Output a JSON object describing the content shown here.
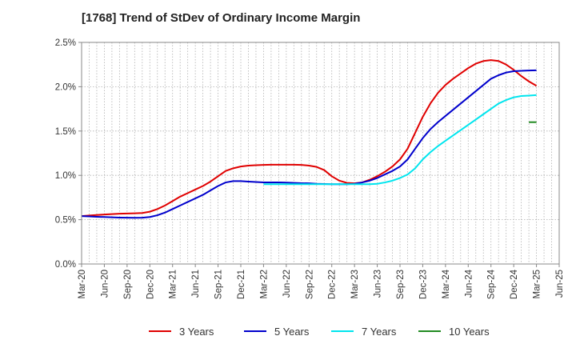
{
  "chart_data": {
    "type": "line",
    "title": "[1768]  Trend of StDev of Ordinary Income Margin",
    "xlabel": "",
    "ylabel": "",
    "x": [
      "Mar-20",
      "Apr-20",
      "May-20",
      "Jun-20",
      "Jul-20",
      "Aug-20",
      "Sep-20",
      "Oct-20",
      "Nov-20",
      "Dec-20",
      "Jan-21",
      "Feb-21",
      "Mar-21",
      "Apr-21",
      "May-21",
      "Jun-21",
      "Jul-21",
      "Aug-21",
      "Sep-21",
      "Oct-21",
      "Nov-21",
      "Dec-21",
      "Jan-22",
      "Feb-22",
      "Mar-22",
      "Apr-22",
      "May-22",
      "Jun-22",
      "Jul-22",
      "Aug-22",
      "Sep-22",
      "Oct-22",
      "Nov-22",
      "Dec-22",
      "Jan-23",
      "Feb-23",
      "Mar-23",
      "Apr-23",
      "May-23",
      "Jun-23",
      "Jul-23",
      "Aug-23",
      "Sep-23",
      "Oct-23",
      "Nov-23",
      "Dec-23",
      "Jan-24",
      "Feb-24",
      "Mar-24",
      "Apr-24",
      "May-24",
      "Jun-24",
      "Jul-24",
      "Aug-24",
      "Sep-24",
      "Oct-24",
      "Nov-24",
      "Dec-24",
      "Jan-25",
      "Feb-25",
      "Mar-25"
    ],
    "x_tick_labels": [
      "Mar-20",
      "Jun-20",
      "Sep-20",
      "Dec-20",
      "Mar-21",
      "Jun-21",
      "Sep-21",
      "Dec-21",
      "Mar-22",
      "Jun-22",
      "Sep-22",
      "Dec-22",
      "Mar-23",
      "Jun-23",
      "Sep-23",
      "Dec-23",
      "Mar-24",
      "Jun-24",
      "Sep-24",
      "Dec-24",
      "Mar-25",
      "Jun-25"
    ],
    "y_tick_labels": [
      "0.0%",
      "0.5%",
      "1.0%",
      "1.5%",
      "2.0%",
      "2.5%"
    ],
    "ylim": [
      0,
      2.5
    ],
    "y_unit": "%",
    "grid": true,
    "legend_position": "bottom",
    "series": [
      {
        "name": "3 Years",
        "color": "#e00000",
        "values": [
          0.54,
          0.547,
          0.553,
          0.558,
          0.563,
          0.567,
          0.57,
          0.572,
          0.575,
          0.59,
          0.62,
          0.66,
          0.71,
          0.76,
          0.8,
          0.84,
          0.88,
          0.93,
          0.99,
          1.05,
          1.08,
          1.1,
          1.11,
          1.115,
          1.118,
          1.12,
          1.12,
          1.12,
          1.12,
          1.118,
          1.11,
          1.095,
          1.06,
          0.99,
          0.94,
          0.915,
          0.91,
          0.92,
          0.95,
          0.99,
          1.04,
          1.1,
          1.18,
          1.3,
          1.48,
          1.66,
          1.81,
          1.93,
          2.02,
          2.09,
          2.15,
          2.21,
          2.26,
          2.29,
          2.3,
          2.29,
          2.25,
          2.19,
          2.12,
          2.06,
          2.01
        ]
      },
      {
        "name": "5 Years",
        "color": "#0000cc",
        "values": [
          0.54,
          0.537,
          0.533,
          0.53,
          0.527,
          0.524,
          0.522,
          0.521,
          0.522,
          0.53,
          0.55,
          0.58,
          0.62,
          0.66,
          0.7,
          0.74,
          0.78,
          0.83,
          0.88,
          0.92,
          0.935,
          0.935,
          0.93,
          0.925,
          0.92,
          0.92,
          0.92,
          0.918,
          0.915,
          0.912,
          0.91,
          0.905,
          0.903,
          0.9,
          0.9,
          0.9,
          0.905,
          0.92,
          0.94,
          0.97,
          1.01,
          1.05,
          1.1,
          1.18,
          1.3,
          1.42,
          1.52,
          1.6,
          1.67,
          1.74,
          1.81,
          1.88,
          1.95,
          2.02,
          2.09,
          2.13,
          2.16,
          2.175,
          2.18,
          2.183,
          2.185
        ]
      },
      {
        "name": "7 Years",
        "color": "#00e5ee",
        "values": [
          null,
          null,
          null,
          null,
          null,
          null,
          null,
          null,
          null,
          null,
          null,
          null,
          null,
          null,
          null,
          null,
          null,
          null,
          null,
          null,
          null,
          null,
          null,
          null,
          0.9,
          0.9,
          0.9,
          0.9,
          0.9,
          0.9,
          0.9,
          0.9,
          0.9,
          0.9,
          0.9,
          0.9,
          0.9,
          0.9,
          0.9,
          0.905,
          0.92,
          0.94,
          0.97,
          1.01,
          1.08,
          1.18,
          1.26,
          1.33,
          1.39,
          1.45,
          1.51,
          1.57,
          1.63,
          1.69,
          1.75,
          1.81,
          1.85,
          1.88,
          1.895,
          1.9,
          1.905
        ]
      },
      {
        "name": "10 Years",
        "color": "#228b22",
        "values": [
          null,
          null,
          null,
          null,
          null,
          null,
          null,
          null,
          null,
          null,
          null,
          null,
          null,
          null,
          null,
          null,
          null,
          null,
          null,
          null,
          null,
          null,
          null,
          null,
          null,
          null,
          null,
          null,
          null,
          null,
          null,
          null,
          null,
          null,
          null,
          null,
          null,
          null,
          null,
          null,
          null,
          null,
          null,
          null,
          null,
          null,
          null,
          null,
          null,
          null,
          null,
          null,
          null,
          null,
          null,
          null,
          null,
          null,
          null,
          1.6,
          1.6
        ]
      }
    ]
  }
}
